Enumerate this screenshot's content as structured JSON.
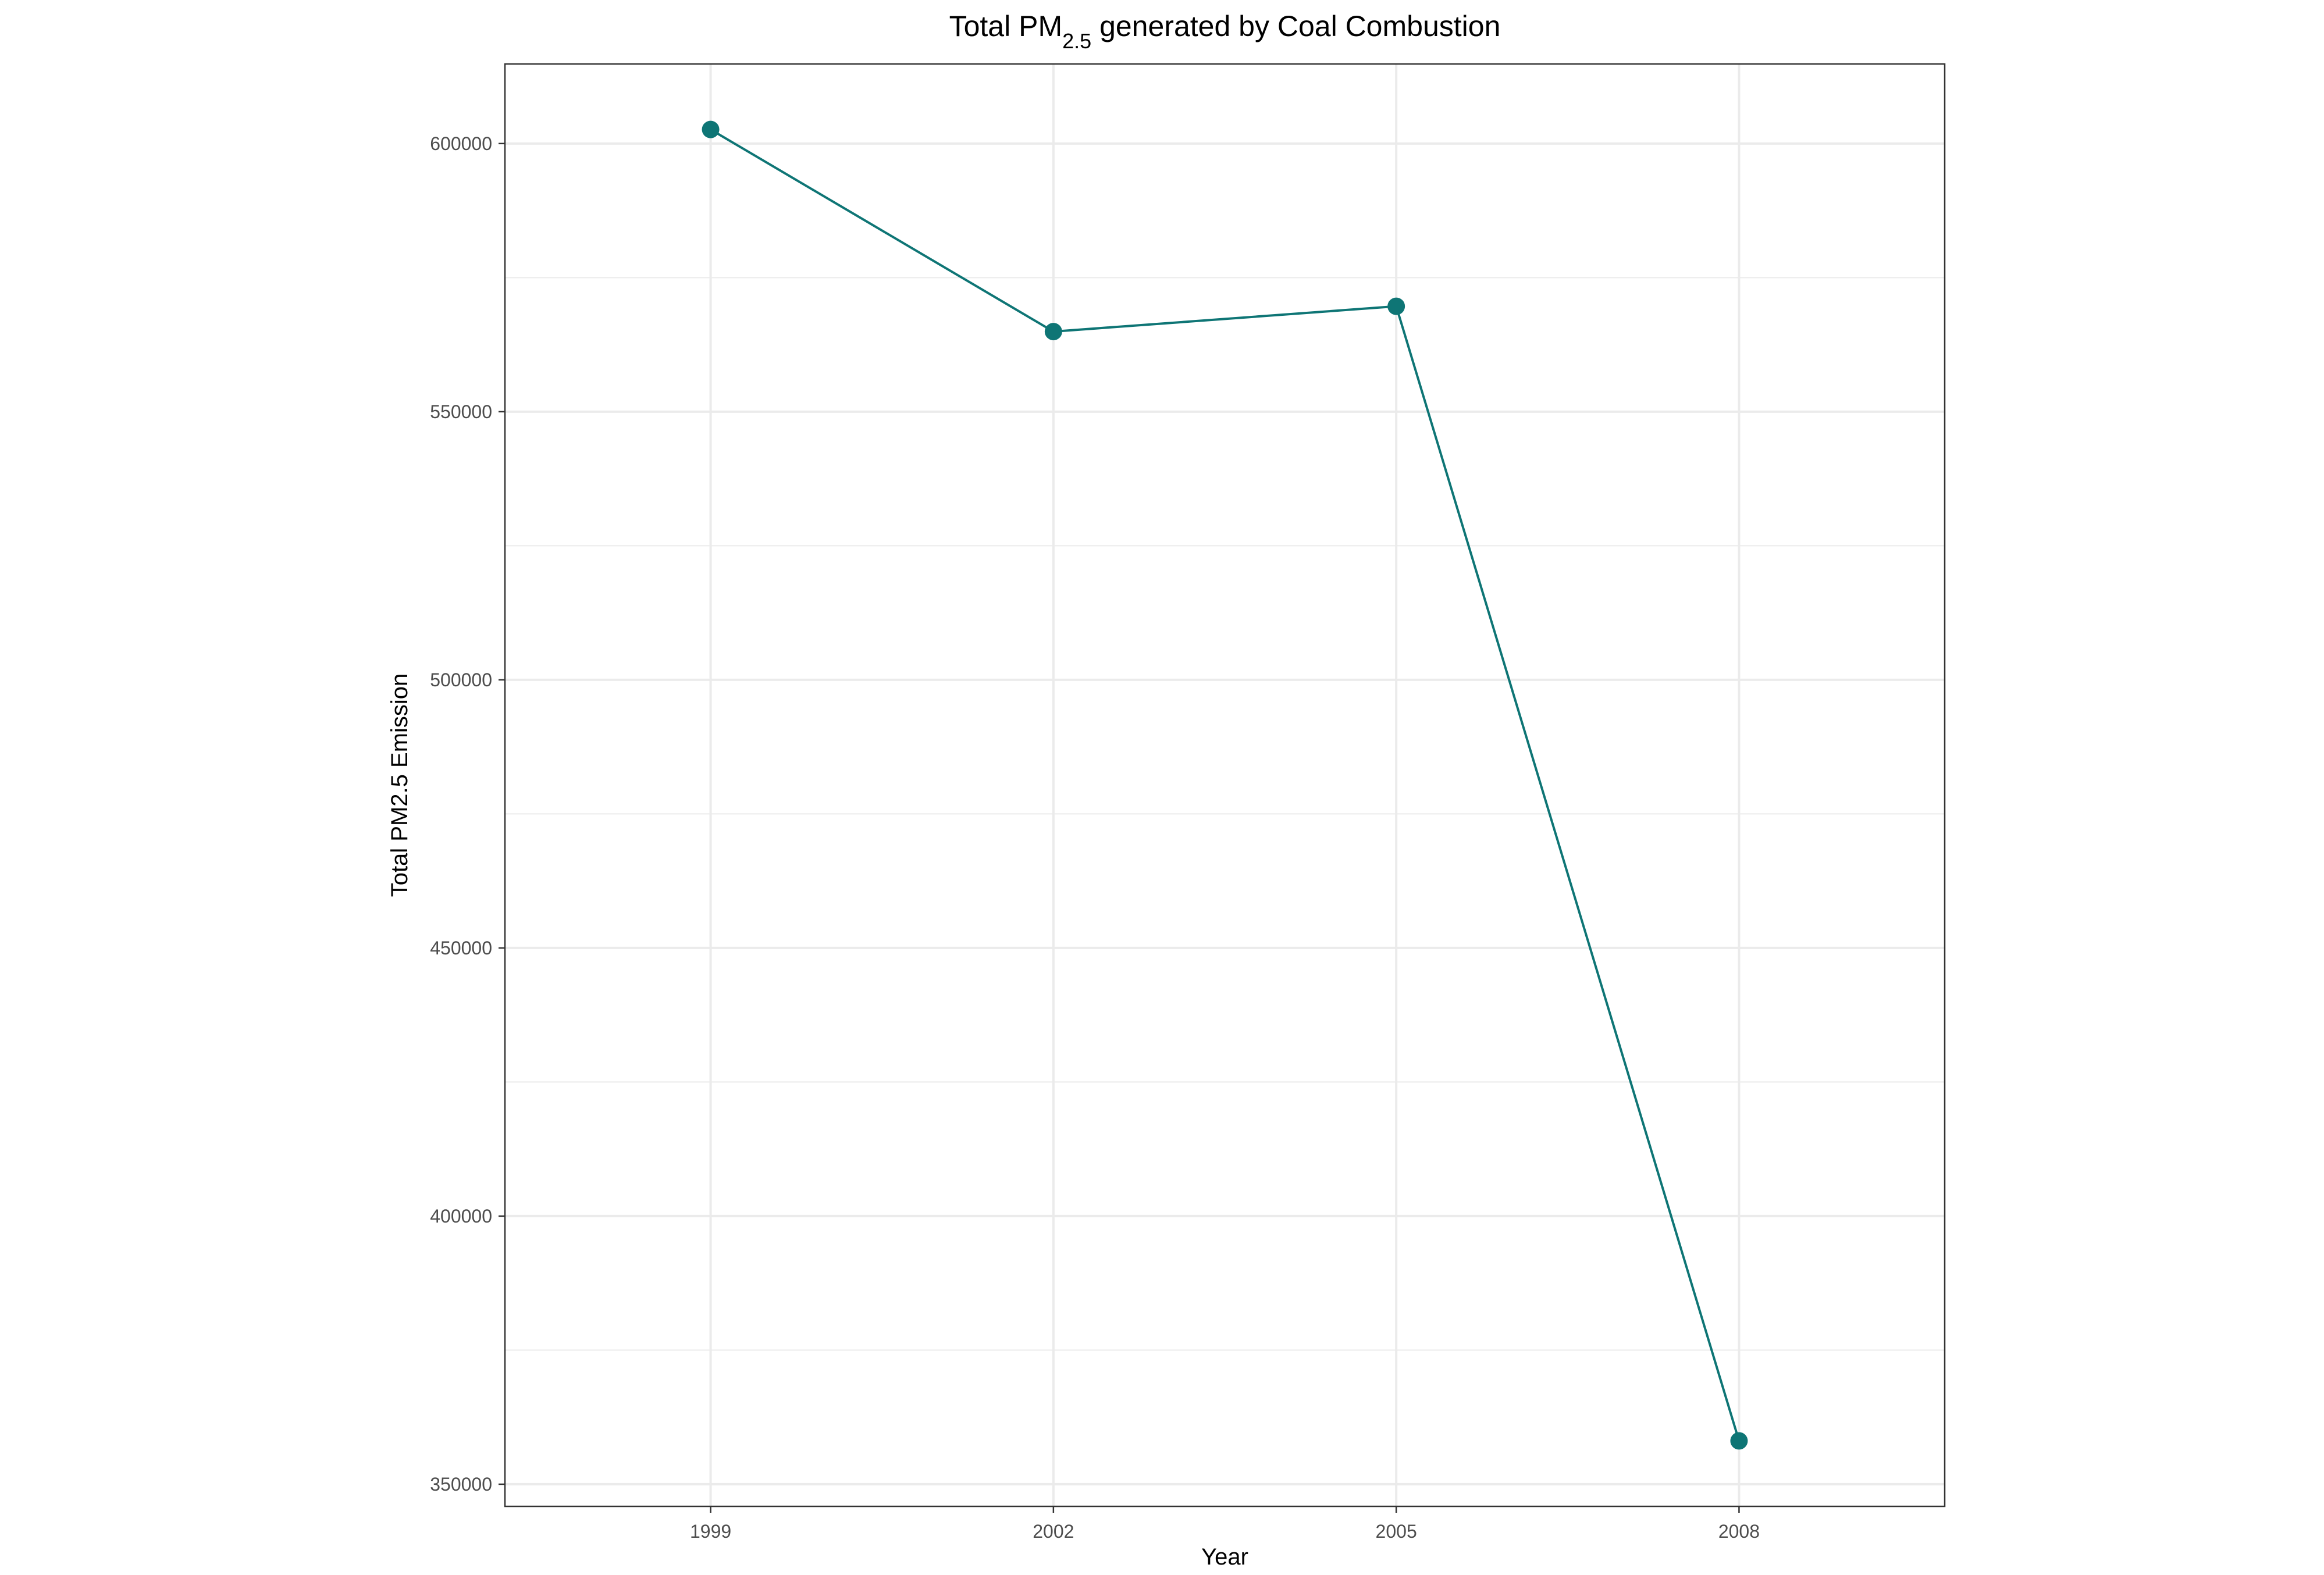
{
  "chart_data": {
    "type": "line",
    "title": {
      "prefix": "Total PM",
      "subscript": "2.5",
      "suffix": " generated by Coal Combustion"
    },
    "xlabel": "Year",
    "ylabel": "Total PM2.5 Emission",
    "categories": [
      "1999",
      "2002",
      "2005",
      "2008"
    ],
    "x": [
      1999,
      2002,
      2005,
      2008
    ],
    "series": [
      {
        "values": [
          602624,
          564940,
          569654,
          358084
        ]
      }
    ],
    "y_ticks": [
      350000,
      400000,
      450000,
      500000,
      550000,
      600000
    ],
    "y_tick_labels": [
      "350000",
      "400000",
      "450000",
      "500000",
      "550000",
      "600000"
    ],
    "x_tick_labels": [
      "1999",
      "2002",
      "2005",
      "2008"
    ],
    "xlim": [
      1997.2,
      2009.8
    ],
    "ylim": [
      345870,
      614838
    ],
    "grid": true,
    "legend": "none",
    "colors": {
      "line": "#0e7575",
      "point": "#0e7575",
      "grid": "#ebebeb",
      "border": "#333333",
      "background": "#ffffff"
    }
  }
}
